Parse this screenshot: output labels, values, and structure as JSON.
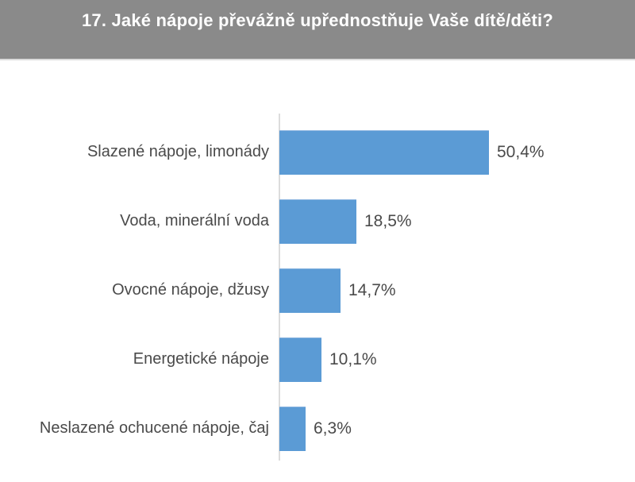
{
  "header": {
    "title": "17. Jaké nápoje převážně upřednostňuje Vaše dítě/děti?",
    "bg_color": "#8a8a8a",
    "text_color": "#ffffff"
  },
  "chart_data": {
    "type": "bar",
    "orientation": "horizontal",
    "title": "17. Jaké nápoje převážně upřednostňuje Vaše dítě/děti?",
    "categories": [
      "Slazené nápoje, limonády",
      "Voda, minerální voda",
      "Ovocné nápoje, džusy",
      "Energetické nápoje",
      "Neslazené ochucené nápoje, čaj"
    ],
    "values": [
      50.4,
      18.5,
      14.7,
      10.1,
      6.3
    ],
    "value_labels": [
      "50,4%",
      "18,5%",
      "14,7%",
      "10,1%",
      "6,3%"
    ],
    "unit": "%",
    "bar_color": "#5b9bd5",
    "axis_color": "#dcdcdc",
    "label_color": "#4a4a4a",
    "grid": false,
    "legend": false,
    "value_labels_position": "end-of-bar"
  }
}
